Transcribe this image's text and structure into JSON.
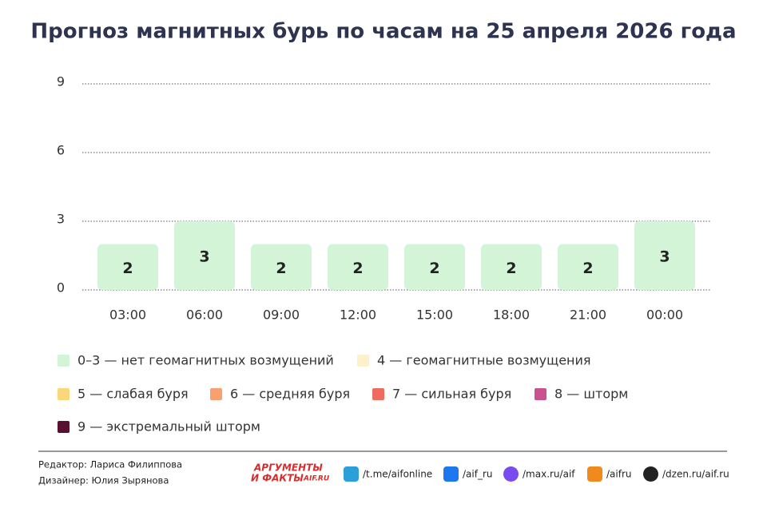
{
  "chart_data": {
    "type": "bar",
    "title": "Прогноз магнитных бурь по часам на 25 апреля 2026 года",
    "categories": [
      "03:00",
      "06:00",
      "09:00",
      "12:00",
      "15:00",
      "18:00",
      "21:00",
      "00:00"
    ],
    "values": [
      2,
      3,
      2,
      2,
      2,
      2,
      2,
      3
    ],
    "color": "#d4f4d8",
    "ylim": [
      0,
      9
    ],
    "yticks": [
      0,
      3,
      6,
      9
    ],
    "grid": true,
    "legend": [
      {
        "label": "0–3 — нет геомагнитных возмущений",
        "color": "#d4f4d8"
      },
      {
        "label": "4 — геомагнитные возмущения",
        "color": "#fdf1c9"
      },
      {
        "label": "5 — слабая буря",
        "color": "#fcd77a"
      },
      {
        "label": "6 — средняя буря",
        "color": "#f9a070"
      },
      {
        "label": "7 — сильная буря",
        "color": "#ef6b5d"
      },
      {
        "label": "8 — шторм",
        "color": "#c9528f"
      },
      {
        "label": "9 — экстремальный шторм",
        "color": "#5a1030"
      }
    ],
    "footer": {
      "editor": "Редактор: Лариса Филиппова",
      "designer": "Дизайнер: Юлия Зырянова",
      "logo": [
        "АРГУМЕНТЫ",
        "И ФАКТЫ",
        "AIF.RU"
      ],
      "links": [
        "/t.me/aifonline",
        "/aif_ru",
        "/max.ru/aif",
        "/aifru",
        "/dzen.ru/aif.ru"
      ]
    }
  }
}
